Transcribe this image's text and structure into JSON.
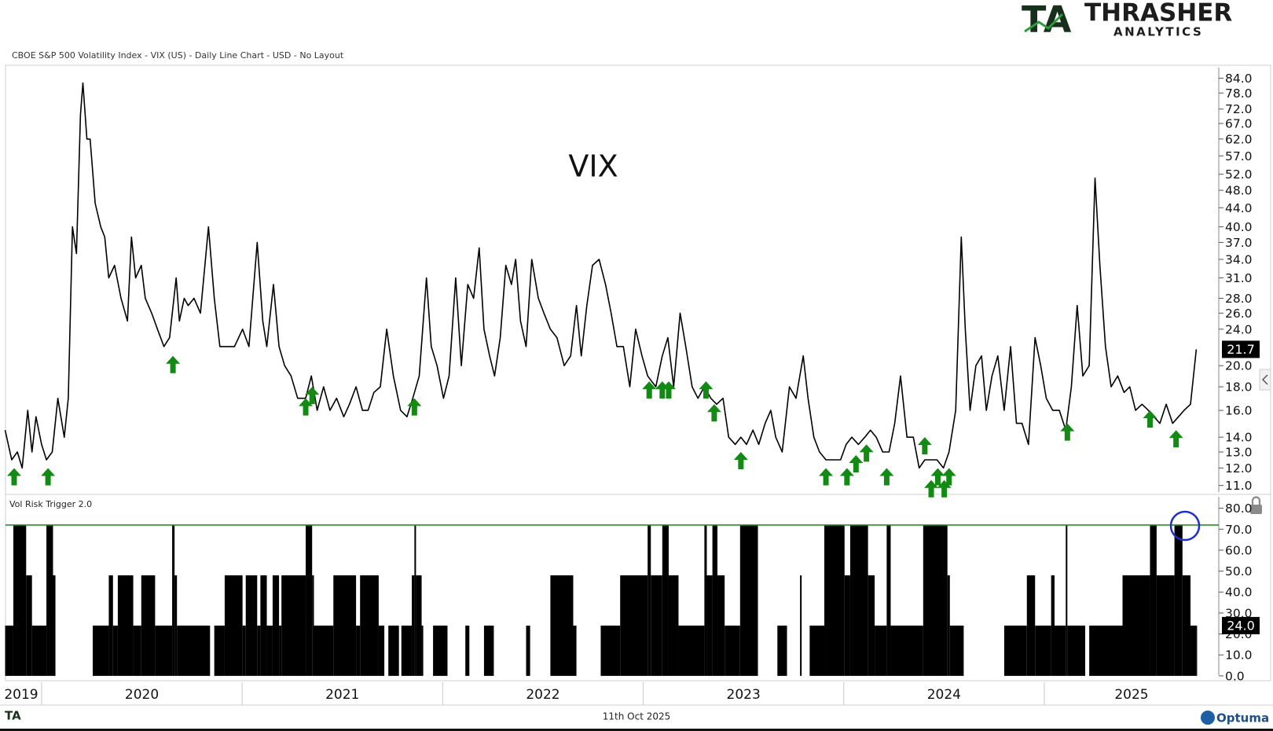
{
  "logo": {
    "mark": "TA",
    "name": "THRASHER",
    "sub": "ANALYTICS"
  },
  "footer": {
    "date": "11th Oct 2025",
    "brand": "Optuma"
  },
  "chart_data": [
    {
      "type": "line",
      "title": "CBOE S&P 500 Volatility Index - VIX (US) - Daily Line Chart - USD - No Layout",
      "annotation": "VIX",
      "log_scale": true,
      "color": "#000000",
      "xlim": [
        2019.82,
        2025.87
      ],
      "ylim": [
        10.52,
        89.6
      ],
      "yticks": [
        {
          "value": 11,
          "label": "11.0"
        },
        {
          "value": 12,
          "label": "12.0"
        },
        {
          "value": 13,
          "label": "13.0"
        },
        {
          "value": 14,
          "label": "14.0"
        },
        {
          "value": 16,
          "label": "16.0"
        },
        {
          "value": 18,
          "label": "18.0"
        },
        {
          "value": 20,
          "label": "20.0"
        },
        {
          "value": 24,
          "label": "24.0"
        },
        {
          "value": 26,
          "label": "26.0"
        },
        {
          "value": 28,
          "label": "28.0"
        },
        {
          "value": 31,
          "label": "31.0"
        },
        {
          "value": 34,
          "label": "34.0"
        },
        {
          "value": 37,
          "label": "37.0"
        },
        {
          "value": 40,
          "label": "40.0"
        },
        {
          "value": 44,
          "label": "44.0"
        },
        {
          "value": 48,
          "label": "48.0"
        },
        {
          "value": 52,
          "label": "52.0"
        },
        {
          "value": 57,
          "label": "57.0"
        },
        {
          "value": 62,
          "label": "62.0"
        },
        {
          "value": 67,
          "label": "67.0"
        },
        {
          "value": 72,
          "label": "72.0"
        },
        {
          "value": 78,
          "label": "78.0"
        },
        {
          "value": 84,
          "label": "84.0"
        }
      ],
      "x": [
        2019.818,
        2019.851,
        2019.879,
        2019.903,
        2019.931,
        2019.952,
        2019.972,
        2020.0,
        2020.024,
        2020.053,
        2020.081,
        2020.113,
        2020.133,
        2020.154,
        2020.174,
        2020.194,
        2020.206,
        2020.226,
        2020.242,
        2020.267,
        2020.295,
        2020.315,
        2020.335,
        2020.364,
        2020.396,
        2020.428,
        2020.448,
        2020.469,
        2020.497,
        2020.517,
        2020.549,
        2020.578,
        2020.61,
        2020.638,
        2020.671,
        2020.687,
        2020.711,
        2020.731,
        2020.76,
        2020.792,
        2020.832,
        2020.861,
        2020.889,
        2020.921,
        2020.962,
        2021.002,
        2021.034,
        2021.075,
        2021.103,
        2021.123,
        2021.156,
        2021.184,
        2021.212,
        2021.244,
        2021.277,
        2021.317,
        2021.345,
        2021.374,
        2021.406,
        2021.438,
        2021.471,
        2021.507,
        2021.535,
        2021.568,
        2021.6,
        2021.628,
        2021.657,
        2021.689,
        2021.721,
        2021.754,
        2021.79,
        2021.822,
        2021.851,
        2021.883,
        2021.919,
        2021.943,
        2021.972,
        2022.004,
        2022.032,
        2022.065,
        2022.093,
        2022.125,
        2022.154,
        2022.182,
        2022.206,
        2022.234,
        2022.259,
        2022.287,
        2022.315,
        2022.343,
        2022.364,
        2022.388,
        2022.416,
        2022.444,
        2022.477,
        2022.505,
        2022.537,
        2022.57,
        2022.606,
        2022.638,
        2022.667,
        2022.691,
        2022.719,
        2022.747,
        2022.78,
        2022.812,
        2022.84,
        2022.869,
        2022.901,
        2022.933,
        2022.962,
        2022.994,
        2023.022,
        2023.063,
        2023.095,
        2023.123,
        2023.152,
        2023.184,
        2023.212,
        2023.244,
        2023.273,
        2023.305,
        2023.337,
        2023.366,
        2023.398,
        2023.426,
        2023.459,
        2023.487,
        2023.515,
        2023.547,
        2023.576,
        2023.608,
        2023.636,
        2023.661,
        2023.693,
        2023.729,
        2023.762,
        2023.798,
        2023.822,
        2023.851,
        2023.879,
        2023.911,
        2023.952,
        2023.984,
        2024.012,
        2024.04,
        2024.073,
        2024.105,
        2024.133,
        2024.162,
        2024.194,
        2024.226,
        2024.254,
        2024.283,
        2024.315,
        2024.347,
        2024.376,
        2024.404,
        2024.436,
        2024.465,
        2024.497,
        2024.525,
        2024.558,
        2024.586,
        2024.606,
        2024.63,
        2024.659,
        2024.687,
        2024.711,
        2024.739,
        2024.768,
        2024.8,
        2024.832,
        2024.861,
        2024.889,
        2024.921,
        2024.954,
        2024.982,
        2025.01,
        2025.042,
        2025.075,
        2025.107,
        2025.135,
        2025.164,
        2025.192,
        2025.224,
        2025.253,
        2025.277,
        2025.305,
        2025.333,
        2025.366,
        2025.398,
        2025.426,
        2025.455,
        2025.487,
        2025.519,
        2025.547,
        2025.576,
        2025.608,
        2025.64,
        2025.669,
        2025.697,
        2025.729,
        2025.758
      ],
      "values": [
        14.5,
        12.5,
        13,
        12,
        16,
        13,
        15.5,
        13.5,
        12.5,
        13,
        17,
        14,
        17,
        40,
        35,
        70,
        82,
        62,
        62,
        45,
        40,
        38,
        31,
        33,
        28,
        25,
        38,
        31,
        33,
        28,
        26,
        24,
        22,
        23,
        31,
        25,
        28,
        27,
        28,
        26,
        40,
        28,
        22,
        22,
        22,
        24,
        22,
        37,
        25,
        22,
        30,
        22,
        20,
        19,
        17,
        17,
        19,
        16,
        18,
        16,
        17,
        15.5,
        16.5,
        18,
        16,
        16,
        17.5,
        18,
        24,
        19,
        16,
        15.5,
        17,
        19,
        31,
        22,
        20,
        17,
        19,
        31,
        20,
        30,
        28,
        36,
        24,
        21,
        19,
        23,
        33,
        30,
        34,
        25,
        22,
        34,
        28,
        26,
        24,
        23,
        20,
        21,
        27,
        21,
        27,
        33,
        34,
        30,
        26,
        22,
        22,
        18,
        24,
        21,
        19,
        18,
        21,
        23,
        18,
        26,
        22,
        18,
        17,
        18,
        17,
        16.5,
        17,
        14,
        13.5,
        14,
        13.5,
        14.5,
        13.5,
        15,
        16,
        14,
        13,
        18,
        17,
        21,
        17,
        14,
        13,
        12.5,
        12.5,
        12.5,
        13.5,
        14,
        13.5,
        14,
        14.5,
        14,
        13,
        13,
        15,
        19,
        14,
        14,
        12,
        12.5,
        12.5,
        12.5,
        12,
        13,
        16,
        38,
        24,
        16,
        20,
        21,
        16,
        19,
        21,
        16,
        22,
        15,
        15,
        13.5,
        23,
        20,
        17,
        16,
        16,
        14.5,
        18,
        27,
        19,
        20,
        51,
        33,
        22,
        18,
        19,
        17.5,
        18,
        16,
        16.5,
        16,
        15.5,
        15,
        16.5,
        15,
        15.5,
        16,
        16.5,
        21.7
      ],
      "markers": {
        "color": "#138a13",
        "x": [
          2019.863,
          2020.032,
          2020.655,
          2021.317,
          2021.349,
          2021.859,
          2023.03,
          2023.095,
          2023.127,
          2023.313,
          2023.354,
          2023.487,
          2023.911,
          2024.016,
          2024.061,
          2024.113,
          2024.214,
          2024.404,
          2024.436,
          2024.469,
          2024.501,
          2024.525,
          2025.115,
          2025.527,
          2025.657
        ],
        "values": [
          12,
          12,
          21,
          17,
          18,
          17,
          18.5,
          18.5,
          18.5,
          18.5,
          16.5,
          13,
          12,
          12,
          12.8,
          13.5,
          12,
          14,
          11.3,
          12,
          11.3,
          12,
          15,
          16,
          14.5
        ]
      }
    },
    {
      "type": "step",
      "title": "Vol Risk Trigger 2.0",
      "color": "#000000",
      "threshold": 72,
      "threshold_color": "#2e8b2e",
      "xlim": [
        2019.82,
        2025.87
      ],
      "ylim": [
        -0.8,
        86.6
      ],
      "yticks": [
        {
          "value": 0,
          "label": "0.0"
        },
        {
          "value": 10,
          "label": "10.0"
        },
        {
          "value": 20,
          "label": "20.0"
        },
        {
          "value": 30,
          "label": "30.0"
        },
        {
          "value": 40,
          "label": "40.0"
        },
        {
          "value": 50,
          "label": "50.0"
        },
        {
          "value": 60,
          "label": "60.0"
        },
        {
          "value": 70,
          "label": "70.0"
        },
        {
          "value": 80,
          "label": "80.0"
        }
      ],
      "xticks": [
        2019,
        2020,
        2021,
        2022,
        2023,
        2024,
        2025
      ],
      "x": [
        2019.818,
        2019.859,
        2019.923,
        2019.952,
        2020.024,
        2020.057,
        2020.069,
        2020.255,
        2020.335,
        2020.356,
        2020.38,
        2020.457,
        2020.497,
        2020.566,
        2020.651,
        2020.663,
        2020.675,
        2020.84,
        2020.861,
        2020.913,
        2021.002,
        2021.018,
        2021.075,
        2021.091,
        2021.123,
        2021.152,
        2021.184,
        2021.196,
        2021.317,
        2021.349,
        2021.358,
        2021.455,
        2021.568,
        2021.588,
        2021.681,
        2021.709,
        2021.729,
        2021.782,
        2021.794,
        2021.846,
        2021.859,
        2021.867,
        2021.895,
        2021.903,
        2021.952,
        2022.024,
        2022.113,
        2022.133,
        2022.206,
        2022.255,
        2022.416,
        2022.436,
        2022.537,
        2022.651,
        2022.667,
        2022.788,
        2022.885,
        2023.022,
        2023.038,
        2023.095,
        2023.127,
        2023.176,
        2023.305,
        2023.317,
        2023.345,
        2023.37,
        2023.406,
        2023.483,
        2023.572,
        2023.669,
        2023.717,
        2023.782,
        2023.79,
        2023.83,
        2023.903,
        2024.004,
        2024.032,
        2024.121,
        2024.154,
        2024.214,
        2024.234,
        2024.396,
        2024.517,
        2024.529,
        2024.598,
        2024.8,
        2024.913,
        2024.954,
        2025.034,
        2025.051,
        2025.107,
        2025.115,
        2025.204,
        2025.224,
        2025.39,
        2025.527,
        2025.56,
        2025.649,
        2025.689,
        2025.729,
        2025.758
      ],
      "values": [
        24,
        72,
        48,
        24,
        72,
        48,
        0,
        24,
        48,
        24,
        48,
        24,
        48,
        24,
        72,
        48,
        24,
        0,
        24,
        48,
        24,
        48,
        24,
        48,
        24,
        48,
        24,
        48,
        72,
        48,
        24,
        48,
        24,
        48,
        24,
        0,
        24,
        0,
        24,
        48,
        72,
        48,
        24,
        0,
        24,
        0,
        24,
        0,
        24,
        0,
        24,
        0,
        48,
        24,
        0,
        24,
        48,
        72,
        48,
        72,
        48,
        24,
        72,
        48,
        72,
        48,
        24,
        72,
        0,
        24,
        0,
        48,
        0,
        24,
        72,
        48,
        72,
        48,
        24,
        72,
        24,
        72,
        48,
        24,
        0,
        24,
        48,
        24,
        48,
        24,
        72,
        24,
        0,
        24,
        48,
        72,
        48,
        72,
        48,
        24,
        24
      ],
      "value_labels": [
        null,
        null,
        null,
        null,
        null,
        null,
        null,
        null,
        null,
        null,
        null,
        null,
        null,
        null,
        null,
        null,
        null,
        null,
        null,
        null,
        null,
        null,
        null,
        null,
        null,
        null,
        null,
        null,
        null,
        null,
        null,
        null,
        null,
        null,
        null,
        null,
        null,
        null,
        null,
        null,
        null,
        null,
        null,
        null,
        null,
        null,
        null,
        null,
        null,
        null,
        null,
        null,
        null,
        null,
        null,
        null,
        null,
        null,
        null,
        null,
        null,
        null,
        null,
        null,
        null,
        null,
        null,
        null,
        null,
        null,
        null,
        null,
        null,
        null,
        null,
        null,
        null,
        null,
        null,
        null,
        null,
        null,
        null,
        null,
        null,
        null,
        null,
        null,
        null,
        null,
        null,
        null,
        null,
        null,
        null,
        null,
        null,
        null,
        null,
        null,
        "24.0"
      ]
    }
  ]
}
